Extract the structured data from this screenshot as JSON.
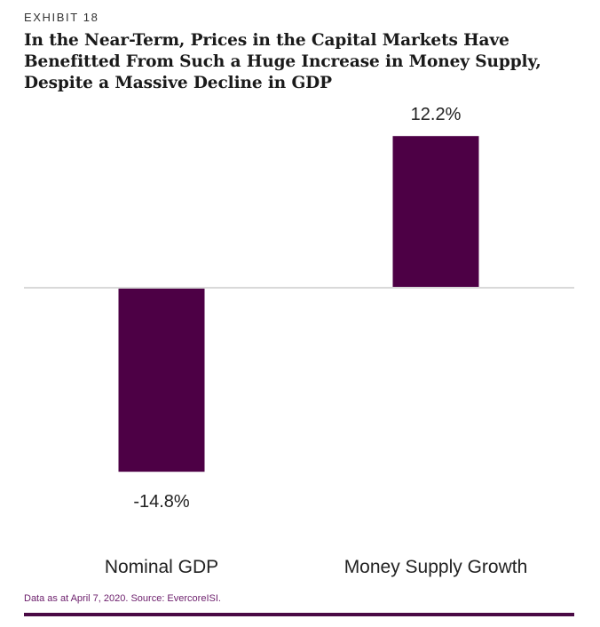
{
  "exhibit_label": "EXHIBIT 18",
  "title_lines": [
    "In the Near-Term, Prices in the Capital Markets Have",
    "Benefitted From Such a Huge Increase in Money Supply,",
    "Despite a Massive Decline in GDP"
  ],
  "source_note": "Data as at April 7, 2020. Source: EvercoreISI.",
  "colors": {
    "bar": "#4d0045",
    "baseline": "#d9d9d9",
    "rule": "#4a0a45",
    "source": "#6b1d6b"
  },
  "chart_data": {
    "type": "bar",
    "categories": [
      "Nominal GDP",
      "Money Supply Growth"
    ],
    "values": [
      -14.8,
      12.2
    ],
    "data_labels": [
      "-14.8%",
      "12.2%"
    ],
    "unit": "%",
    "title": "In the Near-Term, Prices in the Capital Markets Have Benefitted From Such a Huge Increase in Money Supply, Despite a Massive Decline in GDP",
    "xlabel": "",
    "ylabel": "",
    "ylim": [
      -14.8,
      12.2
    ],
    "grid": false,
    "legend": "none"
  }
}
